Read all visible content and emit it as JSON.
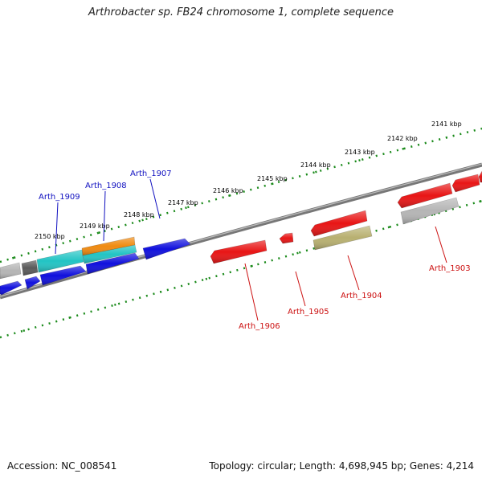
{
  "title": "Arthrobacter sp. FB24 chromosome 1, complete sequence",
  "footer": {
    "accession": "Accession: NC_008541",
    "stats": "Topology: circular; Length: 4,698,945 bp; Genes: 4,214"
  },
  "colors": {
    "backbone": "#777777",
    "tick": "#1a8a1a",
    "forward_label": "#1010c0",
    "reverse_label": "#cc1111"
  },
  "scale_labels": [
    "2141 kbp",
    "2142 kbp",
    "2143 kbp",
    "2144 kbp",
    "2145 kbp",
    "2146 kbp",
    "2147 kbp",
    "2148 kbp",
    "2149 kbp",
    "2150 kbp"
  ],
  "gene_labels": [
    {
      "text": "Arth_1909",
      "strand": "forward"
    },
    {
      "text": "Arth_1908",
      "strand": "forward"
    },
    {
      "text": "Arth_1907",
      "strand": "forward"
    },
    {
      "text": "Arth_1906",
      "strand": "reverse"
    },
    {
      "text": "Arth_1905",
      "strand": "reverse"
    },
    {
      "text": "Arth_1904",
      "strand": "reverse"
    },
    {
      "text": "Arth_1903",
      "strand": "reverse"
    }
  ],
  "features": [
    {
      "color": "#b5b5b5",
      "strand": "forward"
    },
    {
      "color": "#5a5a5a",
      "strand": "forward"
    },
    {
      "color": "#22c4c4",
      "strand": "forward"
    },
    {
      "color": "#f08a10",
      "strand": "forward"
    },
    {
      "color": "#22c4c4",
      "strand": "forward"
    },
    {
      "color": "#1010dd",
      "strand": "forward"
    },
    {
      "color": "#1010dd",
      "strand": "forward"
    },
    {
      "color": "#1010dd",
      "strand": "forward"
    },
    {
      "color": "#1010dd",
      "strand": "forward"
    },
    {
      "color": "#1010dd",
      "strand": "forward"
    },
    {
      "color": "#e81515",
      "strand": "reverse"
    },
    {
      "color": "#e81515",
      "strand": "reverse"
    },
    {
      "color": "#e81515",
      "strand": "reverse"
    },
    {
      "color": "#b8b070",
      "strand": "reverse"
    },
    {
      "color": "#e81515",
      "strand": "reverse"
    },
    {
      "color": "#e81515",
      "strand": "reverse"
    },
    {
      "color": "#e81515",
      "strand": "reverse"
    },
    {
      "color": "#b5b5b5",
      "strand": "reverse"
    }
  ]
}
